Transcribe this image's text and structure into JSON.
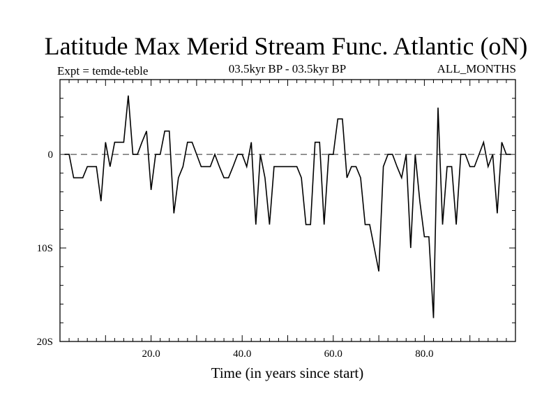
{
  "chart_data": {
    "type": "line",
    "title": "Latitude Max Merid Stream Func. Atlantic (oN)",
    "subtitle_left": "Expt = temde-teble",
    "subtitle_center": "03.5kyr BP - 03.5kyr BP",
    "subtitle_right": "ALL_MONTHS",
    "xlabel": "Time (in years since start)",
    "ylabel": "",
    "xlim": [
      0,
      100
    ],
    "ylim": [
      -20,
      8
    ],
    "x_ticks": [
      {
        "value": 20,
        "label": "20.0"
      },
      {
        "value": 40,
        "label": "40.0"
      },
      {
        "value": 60,
        "label": "60.0"
      },
      {
        "value": 80,
        "label": "80.0"
      }
    ],
    "y_ticks": [
      {
        "value": 0,
        "label": "0"
      },
      {
        "value": -10,
        "label": "10S"
      },
      {
        "value": -20,
        "label": "20S"
      }
    ],
    "reference_line": {
      "value": 0,
      "style": "dashed"
    },
    "series": [
      {
        "name": "Latitude Max Merid Stream Func.",
        "x": [
          1,
          2,
          3,
          4,
          5,
          6,
          7,
          8,
          9,
          10,
          11,
          12,
          13,
          14,
          15,
          16,
          17,
          18,
          19,
          20,
          21,
          22,
          23,
          24,
          25,
          26,
          27,
          28,
          29,
          30,
          31,
          32,
          33,
          34,
          35,
          36,
          37,
          38,
          39,
          40,
          41,
          42,
          43,
          44,
          45,
          46,
          47,
          48,
          49,
          50,
          51,
          52,
          53,
          54,
          55,
          56,
          57,
          58,
          59,
          60,
          61,
          62,
          63,
          64,
          65,
          66,
          67,
          68,
          69,
          70,
          71,
          72,
          73,
          74,
          75,
          76,
          77,
          78,
          79,
          80,
          81,
          82,
          83,
          84,
          85,
          86,
          87,
          88,
          89,
          90,
          91,
          92,
          93,
          94,
          95,
          96,
          97,
          98,
          99
        ],
        "values": [
          0,
          0,
          -2.5,
          -2.5,
          -2.5,
          -1.3,
          -1.3,
          -1.3,
          -5,
          1.3,
          -1.3,
          1.3,
          1.3,
          1.3,
          6.3,
          0,
          0,
          1.3,
          2.5,
          -3.8,
          0,
          0,
          2.5,
          2.5,
          -6.3,
          -2.5,
          -1.3,
          1.3,
          1.3,
          0,
          -1.3,
          -1.3,
          -1.3,
          0,
          -1.3,
          -2.5,
          -2.5,
          -1.3,
          0,
          0,
          -1.3,
          1.3,
          -7.5,
          0,
          -2.5,
          -7.5,
          -1.3,
          -1.3,
          -1.3,
          -1.3,
          -1.3,
          -1.3,
          -2.5,
          -7.5,
          -7.5,
          1.3,
          1.3,
          -7.5,
          0,
          0,
          3.8,
          3.8,
          -2.5,
          -1.3,
          -1.3,
          -2.5,
          -7.5,
          -7.5,
          -10,
          -12.5,
          -1.3,
          0,
          0,
          -1.3,
          -2.5,
          0,
          -10,
          0,
          -5,
          -8.8,
          -8.8,
          -17.5,
          5,
          -7.5,
          -1.3,
          -1.3,
          -7.5,
          0,
          0,
          -1.3,
          -1.3,
          0,
          1.3,
          -1.3,
          0,
          -6.3,
          1.3,
          0,
          0
        ]
      }
    ]
  }
}
